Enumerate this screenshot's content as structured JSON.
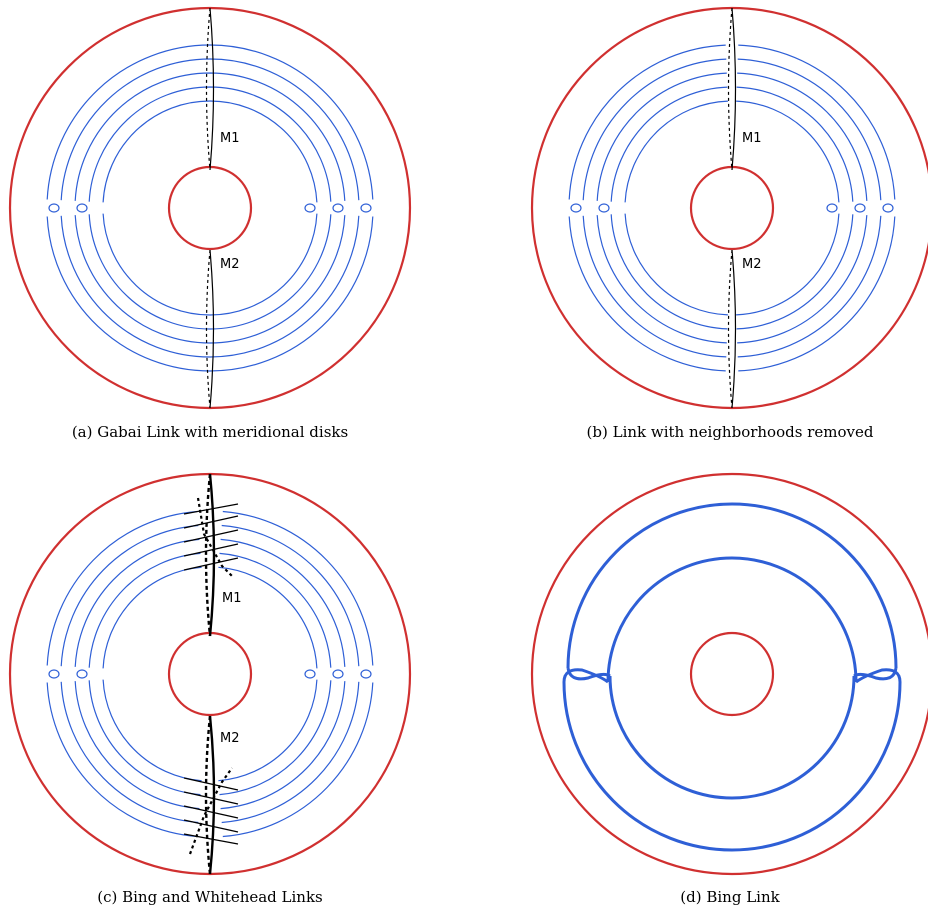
{
  "panels": [
    {
      "id": "a",
      "caption": "(a) Gabai Link with meridional disks",
      "labels": [
        "M1",
        "M2"
      ]
    },
    {
      "id": "b",
      "caption": "(b) Link with neighborhoods removed",
      "labels": [
        "M1",
        "M2"
      ]
    },
    {
      "id": "c",
      "caption": "(c) Bing and Whitehead Links",
      "labels": [
        "M1",
        "M2"
      ]
    },
    {
      "id": "d",
      "caption": "(d) Bing Link",
      "labels": []
    }
  ],
  "colors": {
    "boundary": "#d03030",
    "link": "#2e5fd6",
    "disk": "#000000"
  }
}
